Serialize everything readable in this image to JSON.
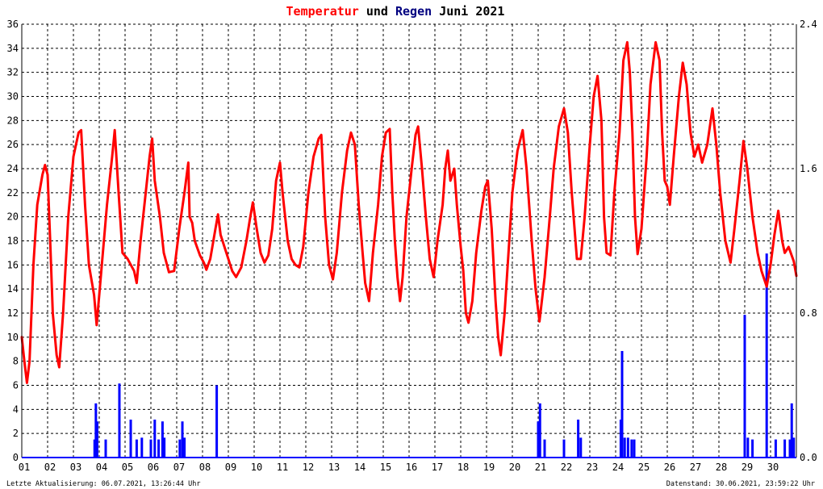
{
  "chart_data": {
    "type": "line",
    "title": {
      "part1": "Temperatur",
      "part2": "und",
      "part3": "Regen",
      "part4": "Juni 2021",
      "color_temp": "#ff0000",
      "color_rain": "#000080"
    },
    "x_ticks": [
      "01",
      "02",
      "03",
      "04",
      "05",
      "06",
      "07",
      "08",
      "09",
      "10",
      "11",
      "12",
      "13",
      "14",
      "15",
      "16",
      "17",
      "18",
      "19",
      "20",
      "21",
      "22",
      "23",
      "24",
      "25",
      "26",
      "27",
      "28",
      "29",
      "30"
    ],
    "xlim": [
      1,
      31
    ],
    "y_left": {
      "ylim": [
        0,
        36
      ],
      "ticks": [
        "0",
        "2",
        "4",
        "6",
        "8",
        "10",
        "12",
        "14",
        "16",
        "18",
        "20",
        "22",
        "24",
        "26",
        "28",
        "30",
        "32",
        "34",
        "36"
      ]
    },
    "y_right": {
      "ylim": [
        0,
        2.4
      ],
      "ticks": [
        "0.0",
        "0.8",
        "1.6",
        "2.4"
      ]
    },
    "grid": true,
    "series": [
      {
        "kind": "line",
        "axis": "left",
        "color": "#ff0000",
        "points": [
          [
            1.0,
            10
          ],
          [
            1.1,
            8
          ],
          [
            1.2,
            6.2
          ],
          [
            1.3,
            8
          ],
          [
            1.45,
            16
          ],
          [
            1.6,
            21
          ],
          [
            1.8,
            23.5
          ],
          [
            1.9,
            24.3
          ],
          [
            2.0,
            23.5
          ],
          [
            2.1,
            18
          ],
          [
            2.2,
            12
          ],
          [
            2.35,
            8.5
          ],
          [
            2.45,
            7.5
          ],
          [
            2.6,
            12
          ],
          [
            2.8,
            20
          ],
          [
            3.0,
            25
          ],
          [
            3.2,
            27
          ],
          [
            3.3,
            27.2
          ],
          [
            3.45,
            21
          ],
          [
            3.6,
            16
          ],
          [
            3.8,
            13.5
          ],
          [
            3.9,
            11
          ],
          [
            4.1,
            16
          ],
          [
            4.3,
            21
          ],
          [
            4.5,
            25
          ],
          [
            4.6,
            27.2
          ],
          [
            4.75,
            22
          ],
          [
            4.9,
            17
          ],
          [
            5.1,
            16.5
          ],
          [
            5.35,
            15.5
          ],
          [
            5.45,
            14.5
          ],
          [
            5.6,
            18
          ],
          [
            5.8,
            22
          ],
          [
            5.95,
            25
          ],
          [
            6.05,
            26.5
          ],
          [
            6.15,
            23
          ],
          [
            6.35,
            20
          ],
          [
            6.5,
            17
          ],
          [
            6.7,
            15.4
          ],
          [
            6.9,
            15.5
          ],
          [
            7.1,
            19
          ],
          [
            7.3,
            22
          ],
          [
            7.45,
            24.5
          ],
          [
            7.5,
            20
          ],
          [
            7.6,
            19.5
          ],
          [
            7.7,
            18
          ],
          [
            7.9,
            16.8
          ],
          [
            8.05,
            16.2
          ],
          [
            8.15,
            15.6
          ],
          [
            8.3,
            16.5
          ],
          [
            8.5,
            19
          ],
          [
            8.6,
            20.2
          ],
          [
            8.7,
            18.5
          ],
          [
            8.85,
            17.5
          ],
          [
            9.0,
            16.5
          ],
          [
            9.15,
            15.5
          ],
          [
            9.3,
            15
          ],
          [
            9.5,
            15.8
          ],
          [
            9.7,
            18
          ],
          [
            9.85,
            20
          ],
          [
            9.95,
            21.2
          ],
          [
            10.1,
            19
          ],
          [
            10.25,
            17
          ],
          [
            10.4,
            16.2
          ],
          [
            10.55,
            16.8
          ],
          [
            10.7,
            19
          ],
          [
            10.85,
            23
          ],
          [
            11.0,
            24.5
          ],
          [
            11.1,
            22
          ],
          [
            11.3,
            18
          ],
          [
            11.45,
            16.5
          ],
          [
            11.6,
            16
          ],
          [
            11.75,
            15.8
          ],
          [
            11.9,
            17.5
          ],
          [
            12.1,
            22
          ],
          [
            12.3,
            25
          ],
          [
            12.5,
            26.5
          ],
          [
            12.6,
            26.8
          ],
          [
            12.75,
            20
          ],
          [
            12.9,
            16
          ],
          [
            13.05,
            14.8
          ],
          [
            13.2,
            17
          ],
          [
            13.4,
            22
          ],
          [
            13.6,
            25.5
          ],
          [
            13.75,
            27
          ],
          [
            13.9,
            26
          ],
          [
            14.05,
            21
          ],
          [
            14.2,
            17
          ],
          [
            14.3,
            14.5
          ],
          [
            14.45,
            13
          ],
          [
            14.6,
            17
          ],
          [
            14.8,
            21
          ],
          [
            14.95,
            25
          ],
          [
            15.1,
            27
          ],
          [
            15.25,
            27.3
          ],
          [
            15.35,
            22
          ],
          [
            15.45,
            18
          ],
          [
            15.55,
            15
          ],
          [
            15.65,
            13
          ],
          [
            15.75,
            15
          ],
          [
            15.9,
            20
          ],
          [
            16.1,
            24
          ],
          [
            16.25,
            26.8
          ],
          [
            16.35,
            27.5
          ],
          [
            16.5,
            24
          ],
          [
            16.65,
            20
          ],
          [
            16.8,
            16.5
          ],
          [
            16.95,
            15
          ],
          [
            17.1,
            18
          ],
          [
            17.3,
            21
          ],
          [
            17.4,
            24
          ],
          [
            17.5,
            25.5
          ],
          [
            17.6,
            23
          ],
          [
            17.75,
            24
          ],
          [
            17.85,
            21
          ],
          [
            18.0,
            17.5
          ],
          [
            18.1,
            15.5
          ],
          [
            18.2,
            12
          ],
          [
            18.3,
            11.2
          ],
          [
            18.45,
            13
          ],
          [
            18.6,
            17
          ],
          [
            18.8,
            20.5
          ],
          [
            18.95,
            22.5
          ],
          [
            19.05,
            23
          ],
          [
            19.2,
            19
          ],
          [
            19.35,
            13
          ],
          [
            19.45,
            10
          ],
          [
            19.55,
            8.5
          ],
          [
            19.7,
            12
          ],
          [
            19.85,
            17
          ],
          [
            20.0,
            22
          ],
          [
            20.2,
            25.5
          ],
          [
            20.4,
            27.2
          ],
          [
            20.55,
            24
          ],
          [
            20.75,
            18
          ],
          [
            20.9,
            14
          ],
          [
            21.05,
            11.3
          ],
          [
            21.25,
            15
          ],
          [
            21.45,
            20
          ],
          [
            21.6,
            24
          ],
          [
            21.8,
            27.5
          ],
          [
            22.0,
            29
          ],
          [
            22.15,
            27
          ],
          [
            22.3,
            22
          ],
          [
            22.5,
            16.5
          ],
          [
            22.65,
            16.5
          ],
          [
            22.8,
            20
          ],
          [
            23.0,
            26
          ],
          [
            23.15,
            30
          ],
          [
            23.3,
            31.7
          ],
          [
            23.45,
            28
          ],
          [
            23.55,
            20
          ],
          [
            23.65,
            17
          ],
          [
            23.8,
            16.8
          ],
          [
            23.95,
            22
          ],
          [
            24.15,
            27
          ],
          [
            24.3,
            33
          ],
          [
            24.45,
            34.5
          ],
          [
            24.55,
            32
          ],
          [
            24.65,
            27
          ],
          [
            24.75,
            20
          ],
          [
            24.85,
            16.9
          ],
          [
            25.0,
            19
          ],
          [
            25.2,
            25
          ],
          [
            25.35,
            31
          ],
          [
            25.55,
            34.5
          ],
          [
            25.7,
            33
          ],
          [
            25.8,
            27
          ],
          [
            25.9,
            23
          ],
          [
            26.0,
            22.5
          ],
          [
            26.1,
            21
          ],
          [
            26.25,
            25
          ],
          [
            26.45,
            30
          ],
          [
            26.6,
            32.8
          ],
          [
            26.75,
            31
          ],
          [
            26.9,
            27
          ],
          [
            27.05,
            25
          ],
          [
            27.2,
            26
          ],
          [
            27.35,
            24.5
          ],
          [
            27.55,
            26
          ],
          [
            27.75,
            29
          ],
          [
            27.9,
            26
          ],
          [
            28.05,
            22
          ],
          [
            28.25,
            18
          ],
          [
            28.45,
            16.2
          ],
          [
            28.6,
            19
          ],
          [
            28.8,
            23
          ],
          [
            28.95,
            26.3
          ],
          [
            29.1,
            24
          ],
          [
            29.3,
            20
          ],
          [
            29.5,
            17
          ],
          [
            29.65,
            15.5
          ],
          [
            29.85,
            14.2
          ],
          [
            30.0,
            16
          ],
          [
            30.15,
            18.5
          ],
          [
            30.3,
            20.5
          ],
          [
            30.45,
            18
          ],
          [
            30.55,
            17
          ],
          [
            30.7,
            17.5
          ],
          [
            30.9,
            16.3
          ],
          [
            31.0,
            15.1
          ]
        ]
      },
      {
        "kind": "bar",
        "axis": "right",
        "color": "#0000ff",
        "bars": [
          [
            3.82,
            0.1
          ],
          [
            3.87,
            0.3
          ],
          [
            3.92,
            0.2
          ],
          [
            4.25,
            0.1
          ],
          [
            4.78,
            0.41
          ],
          [
            5.22,
            0.21
          ],
          [
            5.45,
            0.1
          ],
          [
            5.65,
            0.11
          ],
          [
            6.0,
            0.1
          ],
          [
            6.15,
            0.21
          ],
          [
            6.3,
            0.1
          ],
          [
            6.45,
            0.2
          ],
          [
            6.52,
            0.11
          ],
          [
            7.12,
            0.1
          ],
          [
            7.22,
            0.2
          ],
          [
            7.3,
            0.11
          ],
          [
            8.55,
            0.4
          ],
          [
            21.0,
            0.2
          ],
          [
            21.07,
            0.3
          ],
          [
            21.25,
            0.1
          ],
          [
            22.0,
            0.1
          ],
          [
            22.55,
            0.21
          ],
          [
            22.65,
            0.11
          ],
          [
            24.2,
            0.21
          ],
          [
            24.25,
            0.59
          ],
          [
            24.35,
            0.11
          ],
          [
            24.48,
            0.11
          ],
          [
            24.62,
            0.1
          ],
          [
            24.72,
            0.1
          ],
          [
            29.0,
            0.79
          ],
          [
            29.12,
            0.11
          ],
          [
            29.3,
            0.1
          ],
          [
            29.85,
            1.13
          ],
          [
            30.2,
            0.1
          ],
          [
            30.55,
            0.1
          ],
          [
            30.75,
            0.1
          ],
          [
            30.82,
            0.3
          ],
          [
            30.9,
            0.11
          ]
        ]
      }
    ]
  },
  "footer": {
    "left": "Letzte Aktualisierung: 06.07.2021, 13:26:44 Uhr",
    "right": "Datenstand: 30.06.2021, 23:59:22 Uhr"
  }
}
